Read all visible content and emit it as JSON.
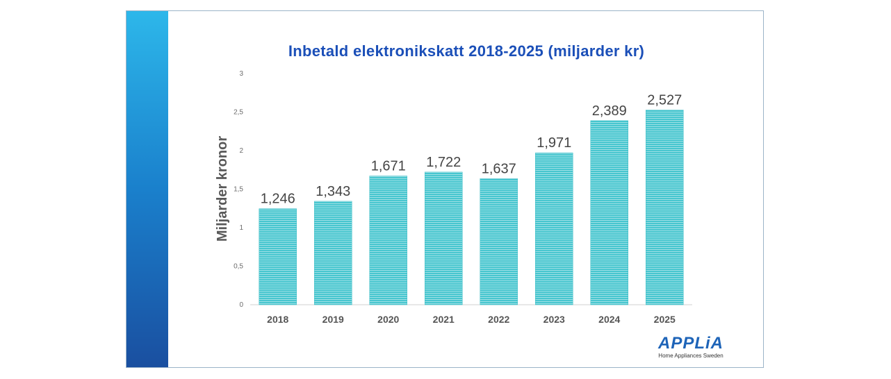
{
  "chart_data": {
    "type": "bar",
    "title": "Inbetald elektronikskatt 2018-2025 (miljarder kr)",
    "xlabel": "",
    "ylabel": "Miljarder kronor",
    "categories": [
      "2018",
      "2019",
      "2020",
      "2021",
      "2022",
      "2023",
      "2024",
      "2025"
    ],
    "values": [
      1.246,
      1.343,
      1.671,
      1.722,
      1.637,
      1.971,
      2.389,
      2.527
    ],
    "value_labels": [
      "1,246",
      "1,343",
      "1,671",
      "1,722",
      "1,637",
      "1,971",
      "2,389",
      "2,527"
    ],
    "ylim": [
      0,
      3
    ],
    "yticks": [
      "0",
      "0,5",
      "1",
      "1,5",
      "2",
      "2,5",
      "3"
    ],
    "grid": false,
    "bar_color": "#3dbdc6"
  },
  "theme": {
    "title_color": "#1b4fb8"
  },
  "logo": {
    "name": "APPLiA",
    "subtitle": "Home Appliances Sweden"
  }
}
